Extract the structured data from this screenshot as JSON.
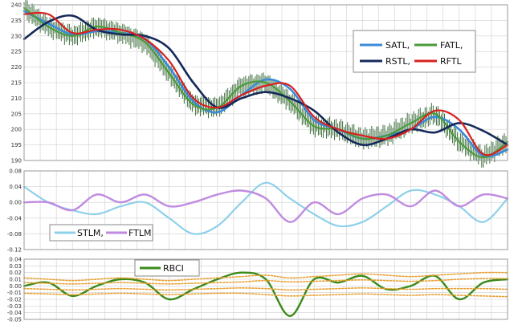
{
  "colors": {
    "grid": "#cfcfcf",
    "frame": "#9a9a9a",
    "price_bar_up": "#3f6f3f",
    "satl": "#3a8ad8",
    "fatl": "#4a9a3a",
    "rstl": "#152a5a",
    "rftl": "#d82020",
    "stlm": "#8fd0ea",
    "ftlm": "#c08ae0",
    "rbci": "#3a8a1a",
    "bands": "#e8a030"
  },
  "chart_data": [
    {
      "type": "line",
      "panel": "price",
      "title": "",
      "xlabel": "",
      "ylabel": "",
      "ylim": [
        190,
        240
      ],
      "yticks": [
        "240",
        "235",
        "230",
        "225",
        "220",
        "215",
        "210",
        "205",
        "200",
        "195",
        "190"
      ],
      "grid": true,
      "legend": {
        "placement": "top-right",
        "entries": [
          "SATL,",
          "FATL,",
          "RSTL,",
          "RFTL"
        ]
      },
      "x": [
        0,
        5,
        10,
        15,
        20,
        25,
        30,
        35,
        40,
        45,
        50,
        55,
        60,
        65,
        70,
        75,
        80,
        85,
        90,
        95,
        100
      ],
      "series": [
        {
          "name": "SATL,",
          "values": [
            238,
            234,
            230.5,
            231.5,
            231,
            229,
            220,
            209,
            205.5,
            211,
            216,
            213,
            203,
            200,
            197,
            198,
            200,
            204,
            200,
            191.5,
            193.5
          ]
        },
        {
          "name": "FATL,",
          "values": [
            239,
            233,
            230,
            233,
            231,
            228,
            218,
            208,
            207,
            214,
            215,
            209,
            201,
            200,
            197,
            198,
            202,
            205,
            196,
            191,
            196
          ]
        },
        {
          "name": "RSTL,",
          "values": [
            229,
            234.5,
            236.5,
            232,
            230.5,
            230,
            226,
            215,
            207,
            210,
            212,
            210,
            206,
            199,
            195,
            197,
            200,
            199,
            202,
            199.5,
            195
          ]
        },
        {
          "name": "RFTL",
          "values": [
            237,
            237,
            231,
            232,
            232,
            229,
            222,
            210,
            207,
            211,
            214,
            214,
            204,
            200,
            198,
            197,
            200,
            206,
            203,
            192,
            195
          ]
        }
      ]
    },
    {
      "type": "line",
      "panel": "momentum",
      "title": "",
      "xlabel": "",
      "ylabel": "",
      "ylim": [
        -0.12,
        0.08
      ],
      "yticks": [
        "0.08",
        "0.04",
        "0.00",
        "-0.04",
        "-0.08",
        "-0.12"
      ],
      "grid": true,
      "legend": {
        "placement": "bottom-left",
        "entries": [
          "STLM,",
          "FTLM"
        ]
      },
      "x": [
        0,
        5,
        10,
        15,
        20,
        25,
        30,
        35,
        40,
        45,
        50,
        55,
        60,
        65,
        70,
        75,
        80,
        85,
        90,
        95,
        100
      ],
      "series": [
        {
          "name": "STLM,",
          "values": [
            0.04,
            0.0,
            -0.02,
            -0.03,
            -0.01,
            0.0,
            -0.04,
            -0.08,
            -0.06,
            0.0,
            0.05,
            0.01,
            -0.03,
            -0.06,
            -0.05,
            -0.01,
            0.03,
            0.02,
            -0.01,
            -0.05,
            0.01
          ]
        },
        {
          "name": "FTLM",
          "values": [
            0.0,
            0.0,
            -0.02,
            0.02,
            0.0,
            0.02,
            -0.01,
            0.0,
            0.02,
            0.03,
            0.01,
            -0.05,
            0.0,
            -0.03,
            0.01,
            0.02,
            -0.01,
            0.03,
            -0.01,
            0.02,
            0.01
          ]
        }
      ]
    },
    {
      "type": "line",
      "panel": "rbci",
      "title": "",
      "xlabel": "",
      "ylabel": "",
      "ylim": [
        -0.05,
        0.04
      ],
      "yticks": [
        "0.04",
        "0.03",
        "0.02",
        "0.01",
        "0.00",
        "-0.01",
        "-0.02",
        "-0.03",
        "-0.04",
        "-0.05"
      ],
      "grid": true,
      "legend": {
        "placement": "top-left",
        "entries": [
          "RBCI"
        ]
      },
      "x": [
        0,
        5,
        10,
        15,
        20,
        25,
        30,
        35,
        40,
        45,
        50,
        55,
        60,
        65,
        70,
        75,
        80,
        85,
        90,
        95,
        100
      ],
      "series": [
        {
          "name": "RBCI",
          "values": [
            0.0,
            0.005,
            -0.015,
            0.0,
            0.01,
            0.005,
            -0.02,
            -0.005,
            0.01,
            0.02,
            0.01,
            -0.045,
            0.01,
            0.005,
            0.015,
            -0.005,
            0.0,
            0.015,
            -0.02,
            0.005,
            0.01
          ]
        },
        {
          "name": "",
          "values": [
            0.012,
            0.01,
            0.008,
            0.01,
            0.012,
            0.01,
            0.008,
            0.01,
            0.012,
            0.014,
            0.016,
            0.012,
            0.014,
            0.016,
            0.018,
            0.016,
            0.014,
            0.016,
            0.018,
            0.02,
            0.02
          ]
        },
        {
          "name": "",
          "values": [
            0.005,
            0.004,
            0.003,
            0.004,
            0.005,
            0.004,
            0.003,
            0.004,
            0.005,
            0.006,
            0.008,
            0.006,
            0.007,
            0.008,
            0.009,
            0.008,
            0.007,
            0.008,
            0.01,
            0.011,
            0.011
          ]
        },
        {
          "name": "",
          "values": [
            -0.004,
            -0.005,
            -0.006,
            -0.005,
            -0.004,
            -0.005,
            -0.006,
            -0.005,
            -0.004,
            -0.003,
            -0.004,
            -0.006,
            -0.005,
            -0.004,
            -0.003,
            -0.004,
            -0.005,
            -0.004,
            -0.004,
            -0.004,
            -0.005
          ]
        },
        {
          "name": "",
          "values": [
            -0.011,
            -0.012,
            -0.013,
            -0.012,
            -0.011,
            -0.012,
            -0.013,
            -0.012,
            -0.011,
            -0.011,
            -0.013,
            -0.015,
            -0.014,
            -0.013,
            -0.012,
            -0.013,
            -0.014,
            -0.013,
            -0.014,
            -0.015,
            -0.016
          ]
        }
      ]
    }
  ]
}
